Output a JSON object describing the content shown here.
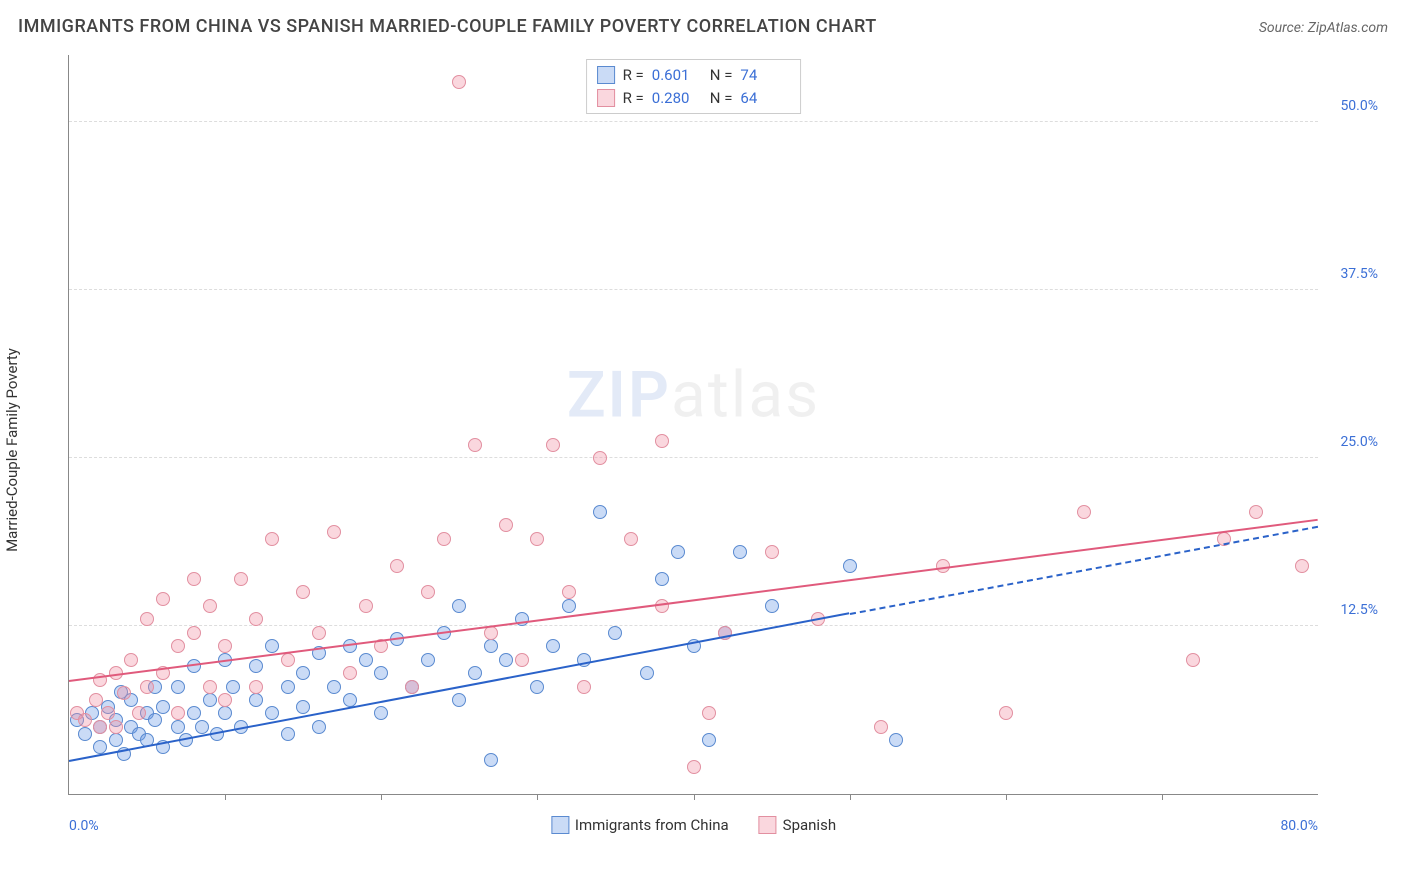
{
  "title": "IMMIGRANTS FROM CHINA VS SPANISH MARRIED-COUPLE FAMILY POVERTY CORRELATION CHART",
  "source_label": "Source: ZipAtlas.com",
  "watermark": {
    "part1": "ZIP",
    "part2": "atlas"
  },
  "chart": {
    "type": "scatter",
    "ylabel": "Married-Couple Family Poverty",
    "xlim": [
      0,
      80
    ],
    "ylim": [
      0,
      55
    ],
    "x_axis_labels": {
      "left": "0.0%",
      "right": "80.0%"
    },
    "x_tick_positions": [
      10,
      20,
      30,
      40,
      50,
      60,
      70
    ],
    "y_gridlines": [
      {
        "value": 12.5,
        "label": "12.5%"
      },
      {
        "value": 25.0,
        "label": "25.0%"
      },
      {
        "value": 37.5,
        "label": "37.5%"
      },
      {
        "value": 50.0,
        "label": "50.0%"
      }
    ],
    "background_color": "#ffffff",
    "grid_color": "#dddddd",
    "axis_color": "#888888",
    "tick_label_color": "#3b6fd6",
    "series": [
      {
        "name": "Immigrants from China",
        "fill": "rgba(102,153,230,0.35)",
        "stroke": "#5a8ad0",
        "trend_color": "#2a62c9",
        "marker_radius": 7,
        "r_label": "R =",
        "r_value": "0.601",
        "n_label": "N =",
        "n_value": "74",
        "trend": {
          "x1": 0,
          "y1": 2.5,
          "x2": 50,
          "y2": 13.5,
          "dash_to_x": 80,
          "dash_to_y": 20.0
        },
        "points": [
          [
            0.5,
            5.5
          ],
          [
            1,
            4.5
          ],
          [
            1.5,
            6
          ],
          [
            2,
            3.5
          ],
          [
            2,
            5
          ],
          [
            2.5,
            6.5
          ],
          [
            3,
            4
          ],
          [
            3,
            5.5
          ],
          [
            3.3,
            7.6
          ],
          [
            3.5,
            3
          ],
          [
            4,
            5
          ],
          [
            4,
            7
          ],
          [
            4.5,
            4.5
          ],
          [
            5,
            6
          ],
          [
            5,
            4
          ],
          [
            5.5,
            5.5
          ],
          [
            5.5,
            8
          ],
          [
            6,
            3.5
          ],
          [
            6,
            6.5
          ],
          [
            7,
            5
          ],
          [
            7,
            8
          ],
          [
            7.5,
            4
          ],
          [
            8,
            6
          ],
          [
            8,
            9.5
          ],
          [
            8.5,
            5
          ],
          [
            9,
            7
          ],
          [
            9.5,
            4.5
          ],
          [
            10,
            6
          ],
          [
            10,
            10
          ],
          [
            10.5,
            8
          ],
          [
            11,
            5
          ],
          [
            12,
            7
          ],
          [
            12,
            9.5
          ],
          [
            13,
            6
          ],
          [
            13,
            11
          ],
          [
            14,
            8
          ],
          [
            14,
            4.5
          ],
          [
            15,
            9
          ],
          [
            15,
            6.5
          ],
          [
            16,
            10.5
          ],
          [
            16,
            5
          ],
          [
            17,
            8
          ],
          [
            18,
            11
          ],
          [
            18,
            7
          ],
          [
            19,
            10
          ],
          [
            20,
            9
          ],
          [
            20,
            6
          ],
          [
            21,
            11.5
          ],
          [
            22,
            8
          ],
          [
            23,
            10
          ],
          [
            24,
            12
          ],
          [
            25,
            14
          ],
          [
            25,
            7
          ],
          [
            26,
            9
          ],
          [
            27,
            11
          ],
          [
            27,
            2.5
          ],
          [
            28,
            10
          ],
          [
            29,
            13
          ],
          [
            30,
            8
          ],
          [
            31,
            11
          ],
          [
            32,
            14
          ],
          [
            33,
            10
          ],
          [
            34,
            21
          ],
          [
            35,
            12
          ],
          [
            37,
            9
          ],
          [
            38,
            16
          ],
          [
            39,
            18
          ],
          [
            40,
            11
          ],
          [
            41,
            4
          ],
          [
            42,
            12
          ],
          [
            43,
            18
          ],
          [
            45,
            14
          ],
          [
            50,
            17
          ],
          [
            53,
            4
          ]
        ]
      },
      {
        "name": "Spanish",
        "fill": "rgba(240,140,160,0.35)",
        "stroke": "#e28fa0",
        "trend_color": "#e05a7c",
        "marker_radius": 7,
        "r_label": "R =",
        "r_value": "0.280",
        "n_label": "N =",
        "n_value": "64",
        "trend": {
          "x1": 0,
          "y1": 8.5,
          "x2": 80,
          "y2": 20.5
        },
        "points": [
          [
            0.5,
            6
          ],
          [
            1,
            5.5
          ],
          [
            1.7,
            7
          ],
          [
            2,
            5
          ],
          [
            2,
            8.5
          ],
          [
            2.5,
            6
          ],
          [
            3,
            9
          ],
          [
            3,
            5
          ],
          [
            3.5,
            7.5
          ],
          [
            4,
            10
          ],
          [
            4.5,
            6
          ],
          [
            5,
            8
          ],
          [
            5,
            13
          ],
          [
            6,
            9
          ],
          [
            6,
            14.5
          ],
          [
            7,
            11
          ],
          [
            7,
            6
          ],
          [
            8,
            12
          ],
          [
            8,
            16
          ],
          [
            9,
            8
          ],
          [
            9,
            14
          ],
          [
            10,
            11
          ],
          [
            10,
            7
          ],
          [
            11,
            16
          ],
          [
            12,
            13
          ],
          [
            12,
            8
          ],
          [
            13,
            19
          ],
          [
            14,
            10
          ],
          [
            15,
            15
          ],
          [
            16,
            12
          ],
          [
            17,
            19.5
          ],
          [
            18,
            9
          ],
          [
            19,
            14
          ],
          [
            20,
            11
          ],
          [
            21,
            17
          ],
          [
            22,
            8
          ],
          [
            23,
            15
          ],
          [
            24,
            19
          ],
          [
            25,
            53
          ],
          [
            26,
            26
          ],
          [
            27,
            12
          ],
          [
            28,
            20
          ],
          [
            29,
            10
          ],
          [
            30,
            19
          ],
          [
            31,
            26
          ],
          [
            32,
            15
          ],
          [
            33,
            8
          ],
          [
            34,
            25
          ],
          [
            36,
            19
          ],
          [
            38,
            14
          ],
          [
            40,
            2
          ],
          [
            42,
            12
          ],
          [
            41,
            6
          ],
          [
            45,
            18
          ],
          [
            48,
            13
          ],
          [
            52,
            5
          ],
          [
            56,
            17
          ],
          [
            60,
            6
          ],
          [
            65,
            21
          ],
          [
            72,
            10
          ],
          [
            74,
            19
          ],
          [
            76,
            21
          ],
          [
            79,
            17
          ],
          [
            38,
            26.3
          ]
        ]
      }
    ],
    "legend_bottom": [
      {
        "label": "Immigrants from China",
        "fill": "rgba(102,153,230,0.35)",
        "stroke": "#5a8ad0"
      },
      {
        "label": "Spanish",
        "fill": "rgba(240,140,160,0.35)",
        "stroke": "#e28fa0"
      }
    ]
  }
}
